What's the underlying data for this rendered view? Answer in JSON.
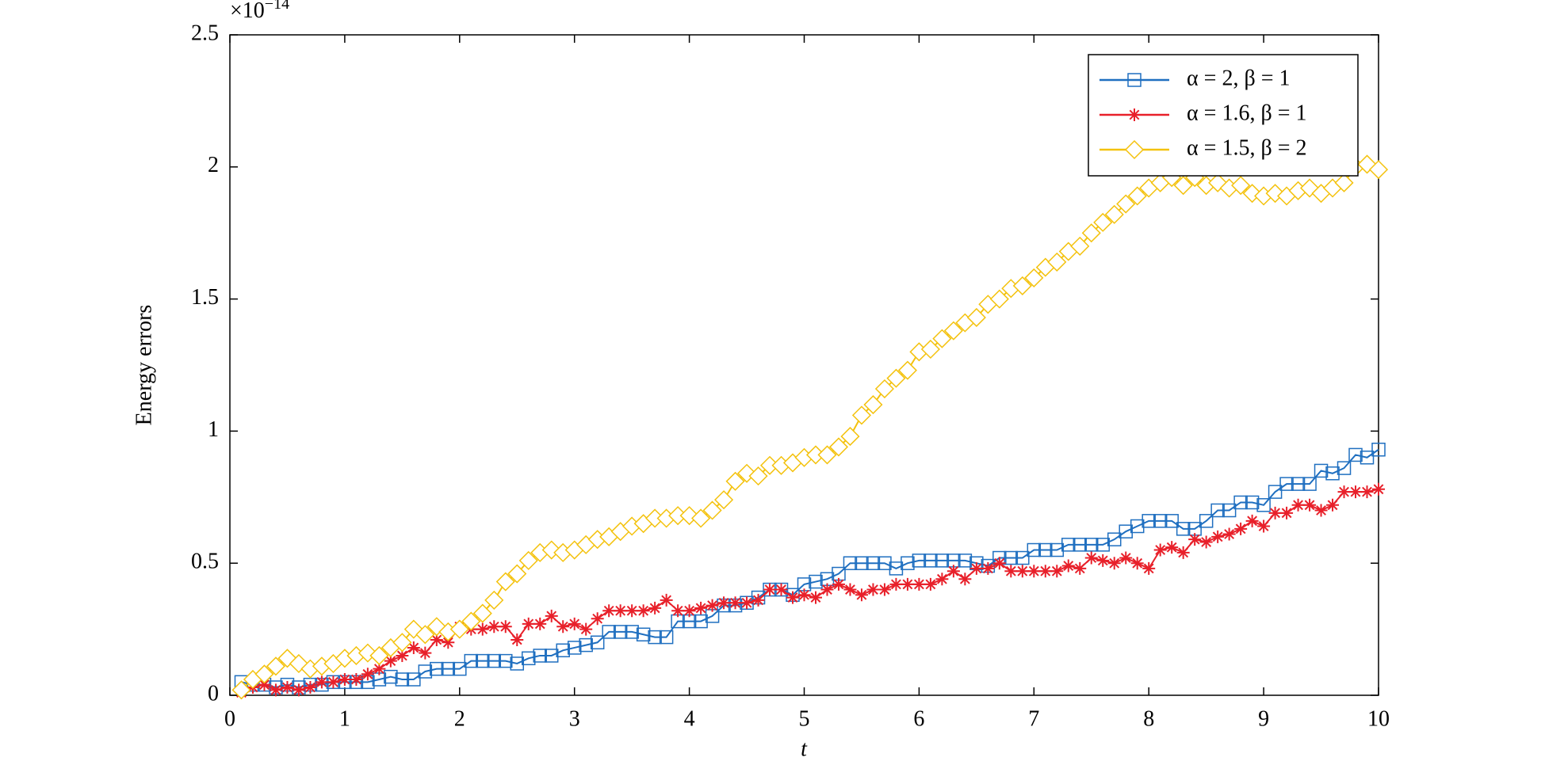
{
  "chart_data": {
    "type": "line",
    "y_label": "Energy errors",
    "x_label": "t",
    "y_multiplier": {
      "base": "×10",
      "exponent": "−14"
    },
    "x": [
      0.1,
      0.2,
      0.3,
      0.4,
      0.5,
      0.6,
      0.7,
      0.8,
      0.9,
      1.0,
      1.1,
      1.2,
      1.3,
      1.4,
      1.5,
      1.6,
      1.7,
      1.8,
      1.9,
      2.0,
      2.1,
      2.2,
      2.3,
      2.4,
      2.5,
      2.6,
      2.7,
      2.8,
      2.9,
      3.0,
      3.1,
      3.2,
      3.3,
      3.4,
      3.5,
      3.6,
      3.7,
      3.8,
      3.9,
      4.0,
      4.1,
      4.2,
      4.3,
      4.4,
      4.5,
      4.6,
      4.7,
      4.8,
      4.9,
      5.0,
      5.1,
      5.2,
      5.3,
      5.4,
      5.5,
      5.6,
      5.7,
      5.8,
      5.9,
      6.0,
      6.1,
      6.2,
      6.3,
      6.4,
      6.5,
      6.6,
      6.7,
      6.8,
      6.9,
      7.0,
      7.1,
      7.2,
      7.3,
      7.4,
      7.5,
      7.6,
      7.7,
      7.8,
      7.9,
      8.0,
      8.1,
      8.2,
      8.3,
      8.4,
      8.5,
      8.6,
      8.7,
      8.8,
      8.9,
      9.0,
      9.1,
      9.2,
      9.3,
      9.4,
      9.5,
      9.6,
      9.7,
      9.8,
      9.9,
      10
    ],
    "series": [
      {
        "name": "α = 2, β = 1",
        "color": "#1f6fc0",
        "marker": "square",
        "values": [
          0.05,
          0.04,
          0.04,
          0.03,
          0.04,
          0.03,
          0.04,
          0.04,
          0.05,
          0.05,
          0.05,
          0.05,
          0.06,
          0.07,
          0.06,
          0.06,
          0.09,
          0.1,
          0.1,
          0.1,
          0.13,
          0.13,
          0.13,
          0.13,
          0.12,
          0.14,
          0.15,
          0.15,
          0.17,
          0.18,
          0.19,
          0.2,
          0.24,
          0.24,
          0.24,
          0.23,
          0.22,
          0.22,
          0.28,
          0.28,
          0.28,
          0.3,
          0.34,
          0.34,
          0.35,
          0.37,
          0.4,
          0.4,
          0.38,
          0.42,
          0.43,
          0.44,
          0.46,
          0.5,
          0.5,
          0.5,
          0.5,
          0.48,
          0.5,
          0.51,
          0.51,
          0.51,
          0.51,
          0.51,
          0.5,
          0.49,
          0.52,
          0.52,
          0.52,
          0.55,
          0.55,
          0.55,
          0.57,
          0.57,
          0.57,
          0.57,
          0.59,
          0.62,
          0.64,
          0.66,
          0.66,
          0.66,
          0.63,
          0.63,
          0.66,
          0.7,
          0.7,
          0.73,
          0.73,
          0.72,
          0.77,
          0.8,
          0.8,
          0.8,
          0.85,
          0.84,
          0.86,
          0.91,
          0.9,
          0.93
        ]
      },
      {
        "name": "α = 1.6, β = 1",
        "color": "#e8202a",
        "marker": "asterisk",
        "values": [
          0.01,
          0.03,
          0.04,
          0.02,
          0.03,
          0.02,
          0.03,
          0.05,
          0.05,
          0.06,
          0.06,
          0.08,
          0.1,
          0.13,
          0.15,
          0.18,
          0.16,
          0.21,
          0.2,
          0.26,
          0.25,
          0.25,
          0.26,
          0.26,
          0.21,
          0.27,
          0.27,
          0.3,
          0.26,
          0.27,
          0.25,
          0.29,
          0.32,
          0.32,
          0.32,
          0.32,
          0.33,
          0.36,
          0.32,
          0.32,
          0.33,
          0.34,
          0.35,
          0.35,
          0.35,
          0.36,
          0.4,
          0.4,
          0.37,
          0.38,
          0.37,
          0.4,
          0.42,
          0.4,
          0.38,
          0.4,
          0.4,
          0.42,
          0.42,
          0.42,
          0.42,
          0.44,
          0.47,
          0.44,
          0.48,
          0.48,
          0.5,
          0.47,
          0.47,
          0.47,
          0.47,
          0.47,
          0.49,
          0.48,
          0.52,
          0.51,
          0.5,
          0.52,
          0.5,
          0.48,
          0.55,
          0.56,
          0.54,
          0.59,
          0.58,
          0.6,
          0.61,
          0.63,
          0.66,
          0.64,
          0.69,
          0.69,
          0.72,
          0.72,
          0.7,
          0.72,
          0.77,
          0.77,
          0.77,
          0.78
        ]
      },
      {
        "name": "α = 1.5, β = 2",
        "color": "#f4c20d",
        "marker": "diamond",
        "values": [
          0.02,
          0.06,
          0.08,
          0.11,
          0.14,
          0.12,
          0.1,
          0.11,
          0.12,
          0.14,
          0.15,
          0.16,
          0.15,
          0.18,
          0.2,
          0.25,
          0.23,
          0.26,
          0.24,
          0.25,
          0.28,
          0.31,
          0.36,
          0.43,
          0.46,
          0.51,
          0.54,
          0.55,
          0.54,
          0.55,
          0.57,
          0.59,
          0.6,
          0.62,
          0.64,
          0.65,
          0.67,
          0.67,
          0.68,
          0.68,
          0.67,
          0.7,
          0.74,
          0.81,
          0.84,
          0.83,
          0.87,
          0.87,
          0.88,
          0.9,
          0.91,
          0.91,
          0.94,
          0.98,
          1.06,
          1.1,
          1.16,
          1.2,
          1.23,
          1.3,
          1.31,
          1.35,
          1.38,
          1.41,
          1.43,
          1.48,
          1.5,
          1.54,
          1.55,
          1.58,
          1.62,
          1.64,
          1.68,
          1.7,
          1.75,
          1.79,
          1.82,
          1.86,
          1.89,
          1.92,
          1.94,
          1.96,
          1.93,
          1.96,
          1.93,
          1.94,
          1.92,
          1.93,
          1.9,
          1.89,
          1.9,
          1.89,
          1.91,
          1.92,
          1.9,
          1.92,
          1.94,
          2.0,
          2.01,
          1.99
        ]
      }
    ],
    "xlim": [
      0,
      10
    ],
    "xticks": [
      0,
      1,
      2,
      3,
      4,
      5,
      6,
      7,
      8,
      9,
      10
    ],
    "ylim": [
      0,
      2.5
    ],
    "yticks": [
      0,
      0.5,
      1,
      1.5,
      2,
      2.5
    ],
    "grid": false,
    "legend": "upper right"
  }
}
